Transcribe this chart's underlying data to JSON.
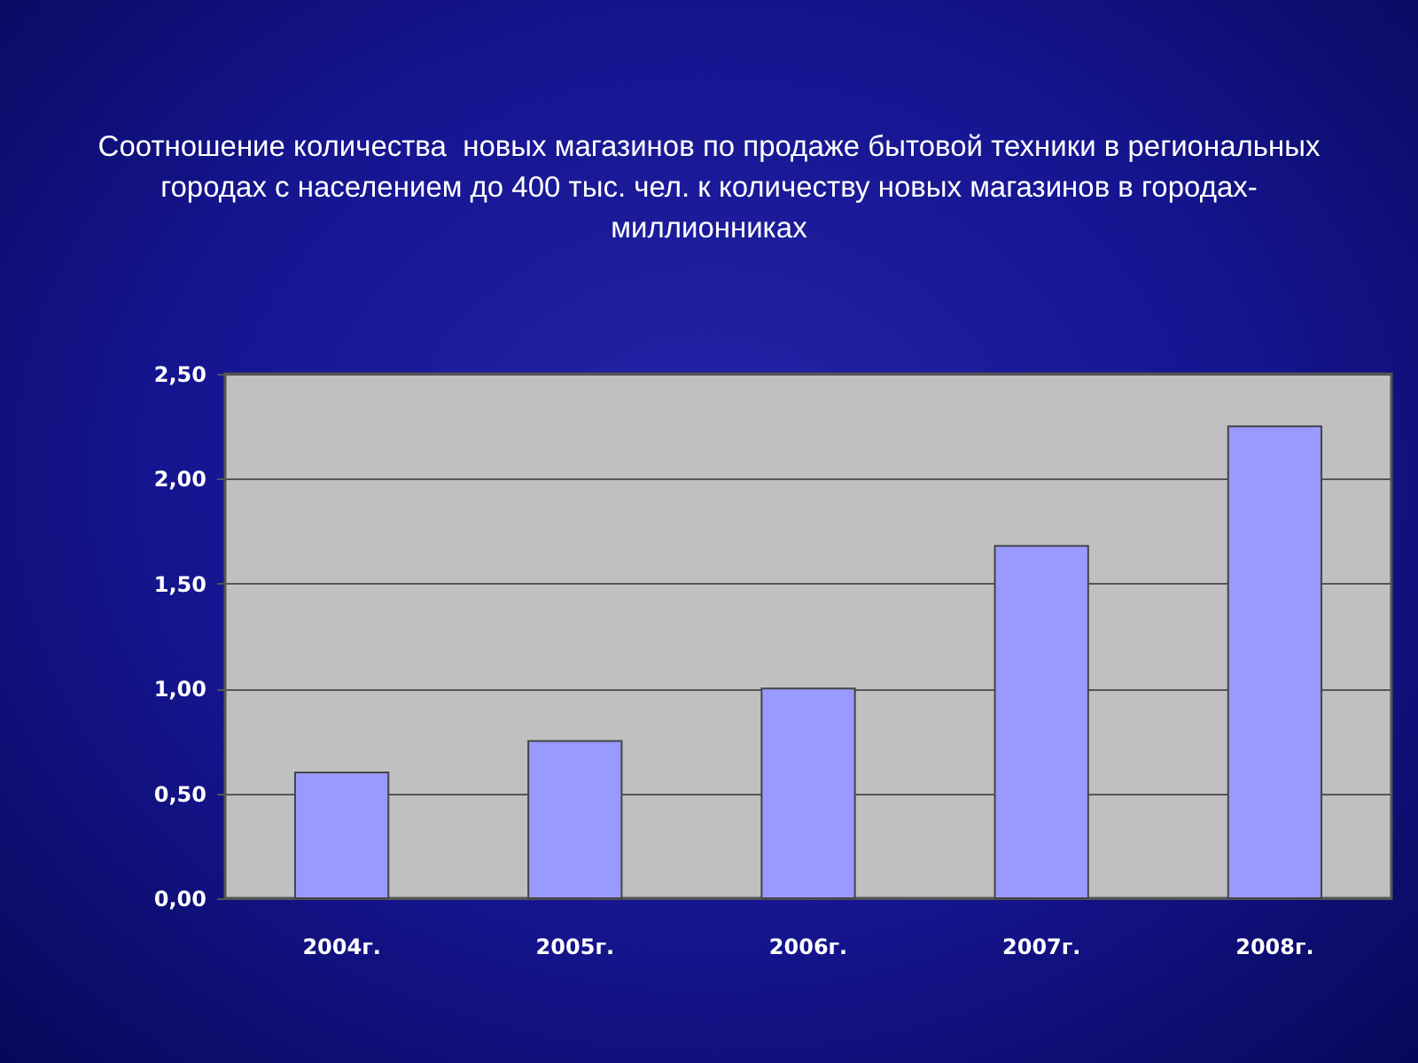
{
  "chart_data": {
    "type": "bar",
    "title": "Соотношение количества  новых магазинов по продаже бытовой техники в региональных городах с населением до 400 тыс. чел. к количеству новых магазинов в городах-миллионниках",
    "categories": [
      "2004г.",
      "2005г.",
      "2006г.",
      "2007г.",
      "2008г."
    ],
    "values": [
      0.6,
      0.75,
      1.0,
      1.68,
      2.25
    ],
    "color": "#9999ff",
    "ylim": [
      0,
      2.5
    ],
    "yticks": [
      {
        "value": 0,
        "label": "0,00"
      },
      {
        "value": 0.5,
        "label": "0,50"
      },
      {
        "value": 1,
        "label": "1,00"
      },
      {
        "value": 1.5,
        "label": "1,50"
      },
      {
        "value": 2,
        "label": "2,00"
      },
      {
        "value": 2.5,
        "label": "2,50"
      }
    ],
    "grid": "y"
  }
}
